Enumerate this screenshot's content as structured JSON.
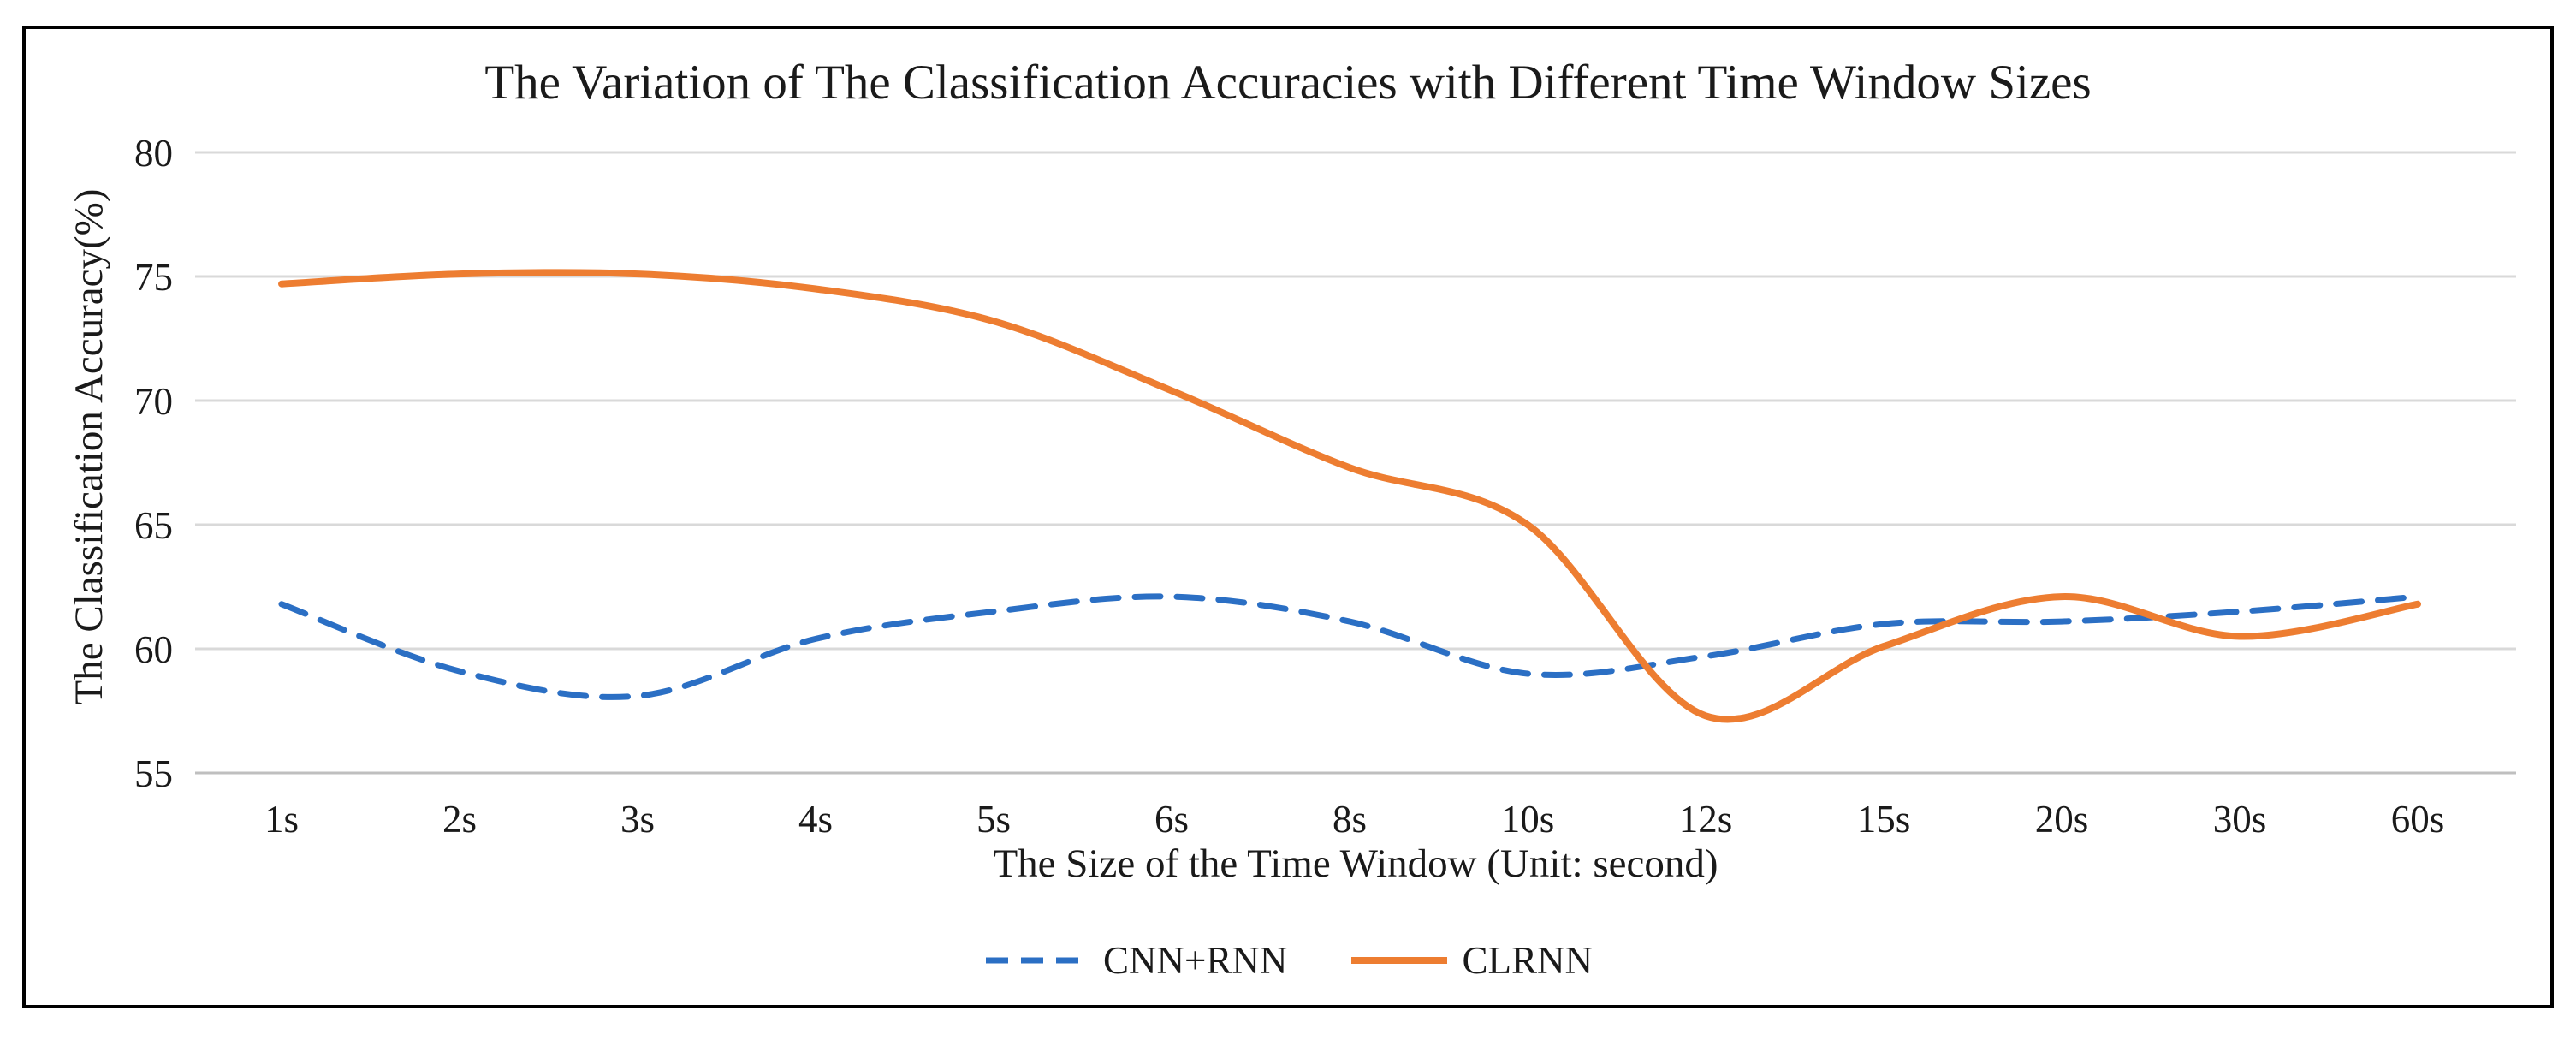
{
  "chart_data": {
    "type": "line",
    "title": "The Variation of The Classification Accuracies with Different Time Window Sizes",
    "xlabel": "The Size of the Time Window (Unit: second)",
    "ylabel": "The Classification Accuracy(%)",
    "categories": [
      "1s",
      "2s",
      "3s",
      "4s",
      "5s",
      "6s",
      "8s",
      "10s",
      "12s",
      "15s",
      "20s",
      "30s",
      "60s"
    ],
    "series": [
      {
        "name": "CNN+RNN",
        "color": "#2B6FC4",
        "line_style": "dashed",
        "values": [
          61.8,
          59.1,
          58.1,
          60.4,
          61.5,
          62.1,
          61.1,
          59.0,
          59.7,
          61.0,
          61.1,
          61.5,
          62.1
        ]
      },
      {
        "name": "CLRNN",
        "color": "#ED7D31",
        "line_style": "solid",
        "values": [
          74.7,
          75.1,
          75.1,
          74.5,
          73.2,
          70.4,
          67.3,
          65.0,
          57.3,
          60.1,
          62.1,
          60.5,
          61.8
        ]
      }
    ],
    "ylim": [
      55,
      80
    ],
    "y_ticks": [
      80,
      75,
      70,
      65,
      60,
      55
    ],
    "grid": true,
    "legend_position": "bottom-center",
    "colors": {
      "gridline": "#D9D9D9",
      "axis_line": "#BFBFBF",
      "text": "#1a1a1a",
      "frame_border": "#000000",
      "background": "#FFFFFF"
    }
  }
}
